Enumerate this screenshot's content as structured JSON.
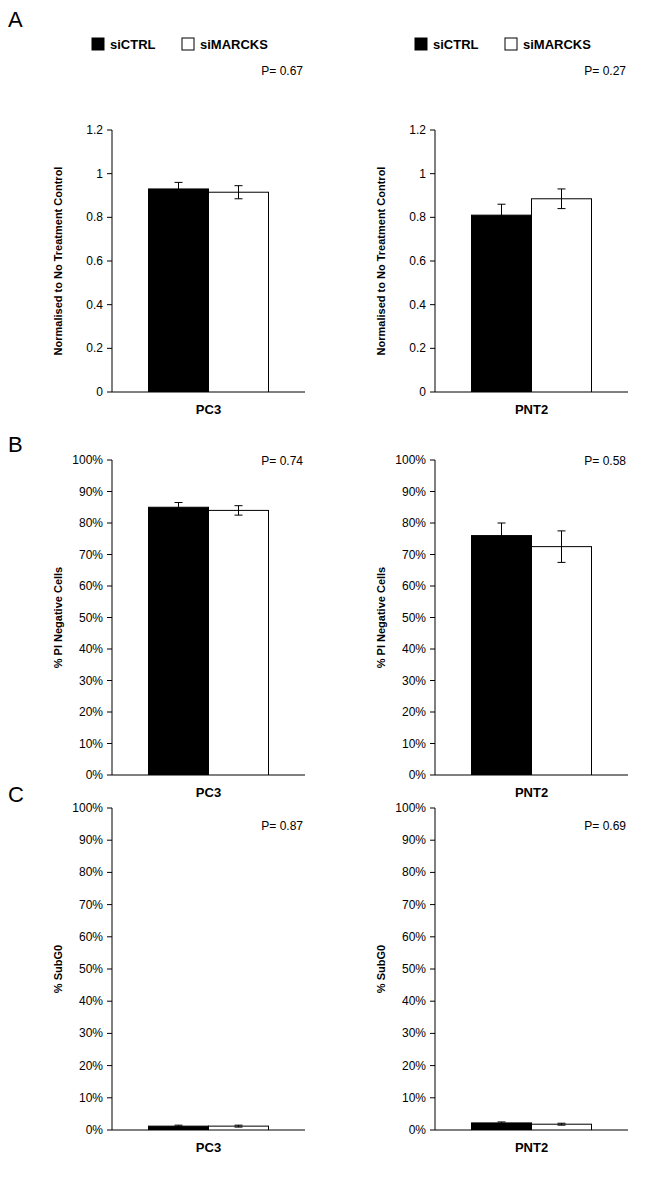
{
  "chart_data": [
    {
      "type": "bar",
      "title": "A",
      "legend": "top",
      "y_label": "Normalised to No Treatment Control",
      "categories": [
        "PC3"
      ],
      "annotations": [
        "P= 0.67"
      ],
      "ylim": [
        0,
        1.2
      ],
      "yticks": [
        0,
        0.2,
        0.4,
        0.6,
        0.8,
        1,
        1.2
      ],
      "series": [
        {
          "name": "siCTRL",
          "color": "#000000",
          "values": [
            0.93
          ],
          "errors": [
            0.03
          ]
        },
        {
          "name": "siMARCKS",
          "color": "#ffffff",
          "values": [
            0.915
          ],
          "errors": [
            0.03
          ]
        }
      ]
    },
    {
      "type": "bar",
      "legend": "top",
      "y_label": "Normalised to No Treatment Control",
      "categories": [
        "PNT2"
      ],
      "annotations": [
        "P= 0.27"
      ],
      "ylim": [
        0,
        1.2
      ],
      "yticks": [
        0,
        0.2,
        0.4,
        0.6,
        0.8,
        1,
        1.2
      ],
      "series": [
        {
          "name": "siCTRL",
          "color": "#000000",
          "values": [
            0.81
          ],
          "errors": [
            0.05
          ]
        },
        {
          "name": "siMARCKS",
          "color": "#ffffff",
          "values": [
            0.885
          ],
          "errors": [
            0.045
          ]
        }
      ]
    },
    {
      "type": "bar",
      "title": "B",
      "y_label": "% PI Negative Cells",
      "categories": [
        "PC3"
      ],
      "annotations": [
        "P= 0.74"
      ],
      "ylim": [
        0,
        100
      ],
      "yticks": [
        {
          "value": 0,
          "label": "0%"
        },
        {
          "value": 10,
          "label": "10%"
        },
        {
          "value": 20,
          "label": "20%"
        },
        {
          "value": 30,
          "label": "30%"
        },
        {
          "value": 40,
          "label": "40%"
        },
        {
          "value": 50,
          "label": "50%"
        },
        {
          "value": 60,
          "label": "60%"
        },
        {
          "value": 70,
          "label": "70%"
        },
        {
          "value": 80,
          "label": "80%"
        },
        {
          "value": 90,
          "label": "90%"
        },
        {
          "value": 100,
          "label": "100%"
        }
      ],
      "series": [
        {
          "name": "siCTRL",
          "color": "#000000",
          "values": [
            85
          ],
          "errors": [
            1.5
          ]
        },
        {
          "name": "siMARCKS",
          "color": "#ffffff",
          "values": [
            84
          ],
          "errors": [
            1.5
          ]
        }
      ]
    },
    {
      "type": "bar",
      "y_label": "% PI Negative Cells",
      "categories": [
        "PNT2"
      ],
      "annotations": [
        "P= 0.58"
      ],
      "ylim": [
        0,
        100
      ],
      "yticks": [
        {
          "value": 0,
          "label": "0%"
        },
        {
          "value": 10,
          "label": "10%"
        },
        {
          "value": 20,
          "label": "20%"
        },
        {
          "value": 30,
          "label": "30%"
        },
        {
          "value": 40,
          "label": "40%"
        },
        {
          "value": 50,
          "label": "50%"
        },
        {
          "value": 60,
          "label": "60%"
        },
        {
          "value": 70,
          "label": "70%"
        },
        {
          "value": 80,
          "label": "80%"
        },
        {
          "value": 90,
          "label": "90%"
        },
        {
          "value": 100,
          "label": "100%"
        }
      ],
      "series": [
        {
          "name": "siCTRL",
          "color": "#000000",
          "values": [
            76
          ],
          "errors": [
            4
          ]
        },
        {
          "name": "siMARCKS",
          "color": "#ffffff",
          "values": [
            72.5
          ],
          "errors": [
            5
          ]
        }
      ]
    },
    {
      "type": "bar",
      "title": "C",
      "y_label": "% SubG0",
      "categories": [
        "PC3"
      ],
      "annotations": [
        "P= 0.87"
      ],
      "ylim": [
        0,
        100
      ],
      "yticks": [
        {
          "value": 0,
          "label": "0%"
        },
        {
          "value": 10,
          "label": "10%"
        },
        {
          "value": 20,
          "label": "20%"
        },
        {
          "value": 30,
          "label": "30%"
        },
        {
          "value": 40,
          "label": "40%"
        },
        {
          "value": 50,
          "label": "50%"
        },
        {
          "value": 60,
          "label": "60%"
        },
        {
          "value": 70,
          "label": "70%"
        },
        {
          "value": 80,
          "label": "80%"
        },
        {
          "value": 90,
          "label": "90%"
        },
        {
          "value": 100,
          "label": "100%"
        }
      ],
      "series": [
        {
          "name": "siCTRL",
          "color": "#000000",
          "values": [
            1.2
          ],
          "errors": [
            0.3
          ]
        },
        {
          "name": "siMARCKS",
          "color": "#ffffff",
          "values": [
            1.2
          ],
          "errors": [
            0.3
          ]
        }
      ]
    },
    {
      "type": "bar",
      "y_label": "% SubG0",
      "categories": [
        "PNT2"
      ],
      "annotations": [
        "P= 0.69"
      ],
      "ylim": [
        0,
        100
      ],
      "yticks": [
        {
          "value": 0,
          "label": "0%"
        },
        {
          "value": 10,
          "label": "10%"
        },
        {
          "value": 20,
          "label": "20%"
        },
        {
          "value": 30,
          "label": "30%"
        },
        {
          "value": 40,
          "label": "40%"
        },
        {
          "value": 50,
          "label": "50%"
        },
        {
          "value": 60,
          "label": "60%"
        },
        {
          "value": 70,
          "label": "70%"
        },
        {
          "value": 80,
          "label": "80%"
        },
        {
          "value": 90,
          "label": "90%"
        },
        {
          "value": 100,
          "label": "100%"
        }
      ],
      "series": [
        {
          "name": "siCTRL",
          "color": "#000000",
          "values": [
            2.2
          ],
          "errors": [
            0.3
          ]
        },
        {
          "name": "siMARCKS",
          "color": "#ffffff",
          "values": [
            1.8
          ],
          "errors": [
            0.3
          ]
        }
      ]
    }
  ]
}
